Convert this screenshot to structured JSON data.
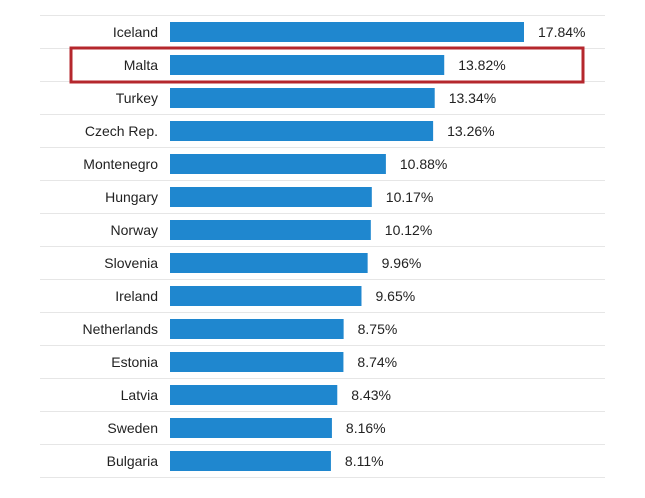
{
  "chart_data": {
    "type": "bar",
    "orientation": "horizontal",
    "categories": [
      "Iceland",
      "Malta",
      "Turkey",
      "Czech Rep.",
      "Montenegro",
      "Hungary",
      "Norway",
      "Slovenia",
      "Ireland",
      "Netherlands",
      "Estonia",
      "Latvia",
      "Sweden",
      "Bulgaria"
    ],
    "values": [
      17.84,
      13.82,
      13.34,
      13.26,
      10.88,
      10.17,
      10.12,
      9.96,
      9.65,
      8.75,
      8.74,
      8.43,
      8.16,
      8.11
    ],
    "value_labels": [
      "17.84%",
      "13.82%",
      "13.34%",
      "13.26%",
      "10.88%",
      "10.17%",
      "10.12%",
      "9.96%",
      "9.65%",
      "8.75%",
      "8.74%",
      "8.43%",
      "8.16%",
      "8.11%"
    ],
    "highlighted_category": "Malta",
    "xlim": [
      0,
      17.84
    ],
    "grid": false,
    "legend": "none",
    "title": "",
    "xlabel": "",
    "ylabel": ""
  },
  "colors": {
    "bar": "#1f87cf",
    "highlight_border": "#b5272d",
    "text": "#222222",
    "gridline": "#e6e6e6"
  }
}
